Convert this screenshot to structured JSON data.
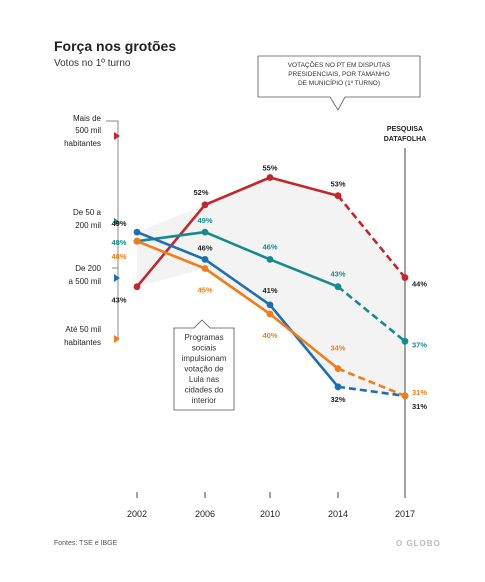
{
  "title": "Força nos grotões",
  "subtitle": "Votos no 1º turno",
  "source": "Fontes: TSE e IBGE",
  "brand": "O GLOBO",
  "annotations": {
    "top_box": [
      "VOTAÇÕES NO PT EM DISPUTAS",
      "PRESIDENCIAIS, POR TAMANHO",
      "DE MUNICÍPIO (1º TURNO)"
    ],
    "middle_box": [
      "Programas",
      "sociais",
      "impulsionam",
      "votação de",
      "Lula nas",
      "cidades do",
      "interior"
    ],
    "survey": [
      "PESQUISA",
      "DATAFOLHA"
    ]
  },
  "chart_data": {
    "type": "line",
    "title": "Força nos grotões",
    "subtitle": "Votos no 1º turno",
    "x": [
      "2002",
      "2006",
      "2010",
      "2014",
      "2017"
    ],
    "y_unit": "%",
    "grid": false,
    "note": "2017 segment shown dashed (Pesquisa Datafolha)",
    "series": [
      {
        "name": "Mais de 500 mil habitantes",
        "color": "#c1272d",
        "values": [
          43,
          52,
          55,
          53,
          44
        ],
        "labels": [
          "43%",
          "52%",
          "55%",
          "53%",
          "44%"
        ]
      },
      {
        "name": "De 50 a 200 mil",
        "color": "#178b8b",
        "values": [
          48,
          49,
          46,
          43,
          37
        ],
        "labels": [
          "48%",
          "49%",
          "46%",
          "43%",
          "37%"
        ]
      },
      {
        "name": "De 200 a 500 mil",
        "color": "#1f6fb0",
        "values": [
          49,
          46,
          41,
          32,
          31
        ],
        "labels": [
          "49%",
          "46%",
          "41%",
          "32%",
          "31%"
        ]
      },
      {
        "name": "Até 50 mil habitantes",
        "color": "#f07d1a",
        "values": [
          48,
          45,
          40,
          34,
          31
        ],
        "labels": [
          "48%",
          "45%",
          "40%",
          "34%",
          "31%"
        ]
      }
    ],
    "legend_labels": [
      {
        "lines": [
          "Mais de",
          "500 mil",
          "habitantes"
        ]
      },
      {
        "lines": [
          "De 50 a",
          "200 mil"
        ]
      },
      {
        "lines": [
          "De 200",
          "a 500 mil"
        ]
      },
      {
        "lines": [
          "Até 50 mil",
          "habitantes"
        ]
      }
    ]
  }
}
